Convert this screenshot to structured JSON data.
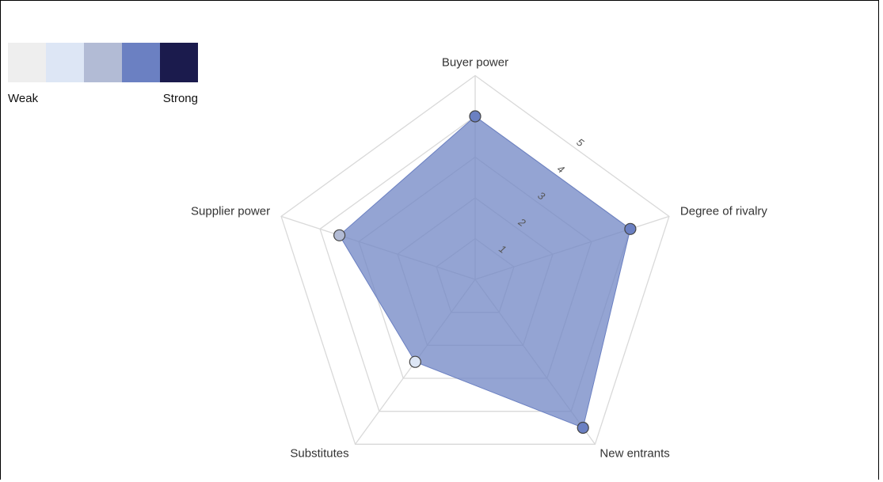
{
  "legend": {
    "colors": [
      "#eeeeee",
      "#dde6f5",
      "#b2bbd5",
      "#6b80c2",
      "#1b1b4d"
    ],
    "weak_label": "Weak",
    "strong_label": "Strong"
  },
  "chart_data": {
    "type": "radar",
    "axes": [
      "Buyer power",
      "Degree of rivalry",
      "New entrants",
      "Substitutes",
      "Supplier power"
    ],
    "values": [
      4,
      4,
      4.5,
      2.5,
      3.5
    ],
    "point_colors": [
      "#6b80c2",
      "#6b80c2",
      "#6b80c2",
      "#dde6f5",
      "#b2bbd5"
    ],
    "rlim": [
      0,
      5
    ],
    "ticks": [
      1,
      2,
      3,
      4,
      5
    ],
    "tick_labels": [
      "1",
      "2",
      "3",
      "4",
      "5"
    ],
    "fill_color": "#7085c4",
    "grid": true
  }
}
